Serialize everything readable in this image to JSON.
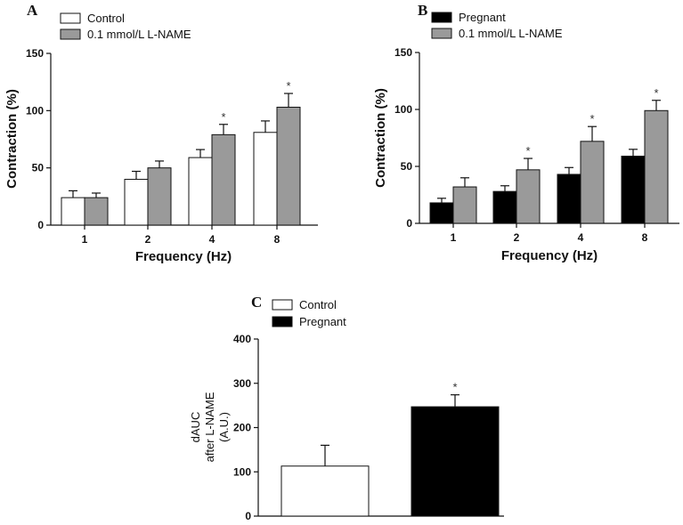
{
  "colors": {
    "white": "#ffffff",
    "gray": "#9a9a9a",
    "black": "#000000",
    "axis": "#111111"
  },
  "chart_data": [
    {
      "panel": "A",
      "type": "bar",
      "categories": [
        "1",
        "2",
        "4",
        "8"
      ],
      "xlabel": "Frequency (Hz)",
      "ylabel": "Contraction (%)",
      "ylim": [
        0,
        150
      ],
      "yticks": [
        "0",
        "50",
        "100",
        "150"
      ],
      "series": [
        {
          "name": "Control",
          "color": "white",
          "values": [
            24,
            40,
            59,
            81
          ],
          "errors": [
            6,
            7,
            7,
            10
          ],
          "annotations": [
            "",
            "",
            "",
            ""
          ]
        },
        {
          "name": "0.1 mmol/L L-NAME",
          "color": "gray",
          "values": [
            24,
            50,
            79,
            103
          ],
          "errors": [
            4,
            6,
            9,
            12
          ],
          "annotations": [
            "",
            "",
            "*",
            "*"
          ]
        }
      ]
    },
    {
      "panel": "B",
      "type": "bar",
      "categories": [
        "1",
        "2",
        "4",
        "8"
      ],
      "xlabel": "Frequency (Hz)",
      "ylabel": "Contraction (%)",
      "ylim": [
        0,
        150
      ],
      "yticks": [
        "0",
        "50",
        "100",
        "150"
      ],
      "series": [
        {
          "name": "Pregnant",
          "color": "black",
          "values": [
            18,
            28,
            43,
            59
          ],
          "errors": [
            4,
            5,
            6,
            6
          ],
          "annotations": [
            "",
            "",
            "",
            ""
          ]
        },
        {
          "name": "0.1 mmol/L L-NAME",
          "color": "gray",
          "values": [
            32,
            47,
            72,
            99
          ],
          "errors": [
            8,
            10,
            13,
            9
          ],
          "annotations": [
            "",
            "*",
            "*",
            "*"
          ]
        }
      ]
    },
    {
      "panel": "C",
      "type": "bar",
      "categories": [
        "Control",
        "Pregnant"
      ],
      "ylabel_lines": [
        "dAUC",
        "after L-NAME",
        "(A.U.)"
      ],
      "ylim": [
        0,
        400
      ],
      "yticks": [
        "0",
        "100",
        "200",
        "300",
        "400"
      ],
      "legend": [
        {
          "name": "Control",
          "color": "white"
        },
        {
          "name": "Pregnant",
          "color": "black"
        }
      ],
      "bars": [
        {
          "name": "Control",
          "color": "white",
          "value": 113,
          "error": 47,
          "annotation": ""
        },
        {
          "name": "Pregnant",
          "color": "black",
          "value": 247,
          "error": 27,
          "annotation": "*"
        }
      ]
    }
  ]
}
